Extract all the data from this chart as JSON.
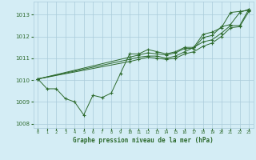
{
  "background_color": "#d4edf5",
  "grid_color": "#aacbda",
  "line_color": "#2d6a2d",
  "title": "Graphe pression niveau de la mer (hPa)",
  "xlim": [
    -0.5,
    23.5
  ],
  "ylim": [
    1007.8,
    1013.6
  ],
  "yticks": [
    1008,
    1009,
    1010,
    1011,
    1012,
    1013
  ],
  "xticks": [
    0,
    1,
    2,
    3,
    4,
    5,
    6,
    7,
    8,
    9,
    10,
    11,
    12,
    13,
    14,
    15,
    16,
    17,
    18,
    19,
    20,
    21,
    22,
    23
  ],
  "xtick_labels": [
    "0",
    "1",
    "2",
    "3",
    "4",
    "5",
    "6",
    "7",
    "8",
    "9",
    "10",
    "11",
    "12",
    "13",
    "14",
    "15",
    "16",
    "17",
    "18",
    "19",
    "20",
    "21",
    "22",
    "23"
  ],
  "series": [
    {
      "x": [
        0,
        1,
        2,
        3,
        4,
        5,
        6,
        7,
        8,
        9,
        10,
        11,
        12,
        13,
        14,
        15,
        16,
        17,
        18,
        19,
        20,
        21,
        22,
        23
      ],
      "y": [
        1010.05,
        1009.6,
        1009.6,
        1009.15,
        1009.0,
        1008.4,
        1009.3,
        1009.2,
        1009.4,
        1010.3,
        1011.2,
        1011.2,
        1011.4,
        1011.3,
        1011.2,
        1011.3,
        1011.5,
        1011.5,
        1012.1,
        1012.2,
        1012.4,
        1013.1,
        1013.15,
        1013.2
      ]
    },
    {
      "x": [
        0,
        10,
        11,
        12,
        13,
        14,
        15,
        16,
        17,
        18,
        19,
        20,
        21,
        22,
        23
      ],
      "y": [
        1010.05,
        1011.05,
        1011.15,
        1011.25,
        1011.2,
        1011.15,
        1011.25,
        1011.45,
        1011.45,
        1011.95,
        1012.05,
        1012.45,
        1012.55,
        1013.1,
        1013.25
      ]
    },
    {
      "x": [
        0,
        10,
        11,
        12,
        13,
        14,
        15,
        16,
        17,
        18,
        19,
        20,
        21,
        22,
        23
      ],
      "y": [
        1010.05,
        1010.95,
        1011.05,
        1011.1,
        1011.1,
        1011.0,
        1011.1,
        1011.3,
        1011.5,
        1011.75,
        1011.85,
        1012.15,
        1012.5,
        1012.5,
        1013.25
      ]
    },
    {
      "x": [
        0,
        10,
        11,
        12,
        13,
        14,
        15,
        16,
        17,
        18,
        19,
        20,
        21,
        22,
        23
      ],
      "y": [
        1010.05,
        1010.85,
        1010.95,
        1011.05,
        1011.0,
        1010.95,
        1011.0,
        1011.2,
        1011.3,
        1011.55,
        1011.7,
        1012.0,
        1012.4,
        1012.45,
        1013.15
      ]
    }
  ]
}
